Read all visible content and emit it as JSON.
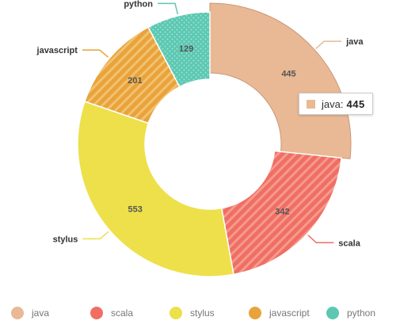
{
  "chart_data": {
    "type": "pie",
    "variant": "donut",
    "start_angle_deg": 0,
    "direction": "clockwise",
    "categories": [
      "java",
      "scala",
      "stylus",
      "javascript",
      "python"
    ],
    "values": [
      445,
      342,
      553,
      201,
      129
    ],
    "colors": [
      "#e8b994",
      "#f06e62",
      "#ede04b",
      "#e9a33a",
      "#5cc8b2"
    ],
    "patterns": [
      "none",
      "stripes",
      "none",
      "stripes",
      "dots"
    ],
    "highlighted": "java",
    "legend_position": "bottom",
    "tooltip": {
      "name": "java",
      "separator": ":",
      "value": "445"
    }
  }
}
